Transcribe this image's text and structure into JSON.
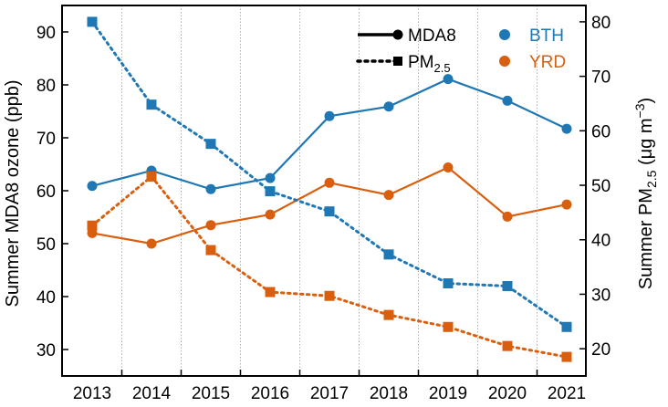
{
  "chart_data": {
    "type": "line",
    "x": [
      "2013",
      "2014",
      "2015",
      "2016",
      "2017",
      "2018",
      "2019",
      "2020",
      "2021"
    ],
    "left_axis": {
      "label": "Summer MDA8 ozone (ppb)",
      "ylim": [
        25,
        95
      ],
      "ticks": [
        "30",
        "40",
        "50",
        "60",
        "70",
        "80",
        "90"
      ]
    },
    "right_axis": {
      "label_prefix": "Summer PM",
      "label_sub": "2.5",
      "label_units_a": " (μg m",
      "label_sup": "−3",
      "label_units_b": ")",
      "ylim": [
        15,
        83
      ],
      "ticks": [
        "20",
        "30",
        "40",
        "50",
        "60",
        "70",
        "80"
      ]
    },
    "grid": {
      "x_vertical_dotted": true
    },
    "legend": {
      "placement": "top-right",
      "styles": [
        {
          "label": "MDA8",
          "line": "solid",
          "marker": "circle"
        },
        {
          "label_prefix": "PM",
          "label_sub": "2.5",
          "line": "dotted",
          "marker": "square"
        }
      ],
      "regions": [
        {
          "label": "BTH",
          "color": "#1f77b4"
        },
        {
          "label": "YRD",
          "color": "#d95f0e"
        }
      ]
    },
    "series": [
      {
        "region": "BTH",
        "metric": "MDA8",
        "axis": "left",
        "color": "#1f77b4",
        "values": [
          60.9,
          63.8,
          60.3,
          62.4,
          74.1,
          75.9,
          81.1,
          77.0,
          71.7
        ]
      },
      {
        "region": "YRD",
        "metric": "MDA8",
        "axis": "left",
        "color": "#d95f0e",
        "values": [
          52.0,
          50.0,
          53.5,
          55.5,
          61.5,
          59.2,
          64.4,
          55.1,
          57.4
        ]
      },
      {
        "region": "BTH",
        "metric": "PM2.5",
        "axis": "right",
        "color": "#1f77b4",
        "values": [
          80.0,
          64.8,
          57.6,
          48.9,
          45.2,
          37.3,
          32.0,
          31.5,
          24.0
        ]
      },
      {
        "region": "YRD",
        "metric": "PM2.5",
        "axis": "right",
        "color": "#d95f0e",
        "values": [
          42.6,
          51.6,
          38.1,
          30.4,
          29.7,
          26.2,
          24.0,
          20.5,
          18.5
        ]
      }
    ]
  }
}
